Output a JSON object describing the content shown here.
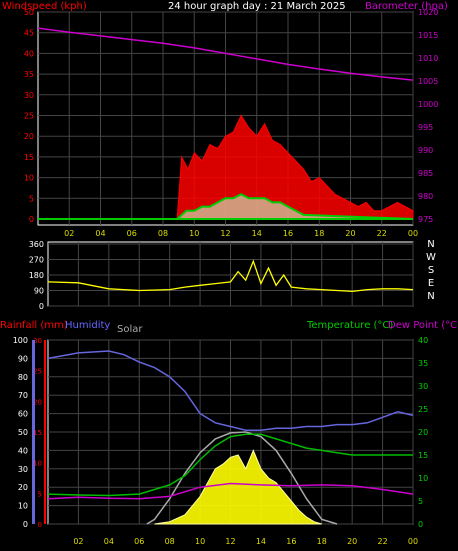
{
  "header": {
    "windspeed_label": "Windspeed (kph)",
    "title": "24 hour graph day : 21 March 2025",
    "barometer_label": "Barometer (hpa)"
  },
  "bottom_header": {
    "rainfall_label": "Rainfall (mm)",
    "humidity_label": "Humidity",
    "solar_label": "Solar",
    "temperature_label": "Temperature (°C)",
    "dewpoint_label": "Dew Point (°C)"
  },
  "colors": {
    "windspeed": "#ff0000",
    "gust_avg": "#00cc00",
    "barometer": "#cc00cc",
    "direction": "#ffff00",
    "humidity": "#6666dd",
    "temperature": "#00bb00",
    "dewpoint": "#cc00cc",
    "solar": "#ffff00",
    "solar_max": "#aaaaaa",
    "rainfall": "#ff0000",
    "grid": "#444444",
    "axis_text_x": "#dddd00"
  },
  "chart_data": [
    {
      "type": "area",
      "chart": "wind-barometer",
      "x_ticks": [
        "02",
        "04",
        "06",
        "08",
        "10",
        "12",
        "14",
        "16",
        "18",
        "20",
        "22",
        "00"
      ],
      "x_hours": [
        2,
        4,
        6,
        8,
        10,
        12,
        14,
        16,
        18,
        20,
        22,
        24
      ],
      "ylabel_left": "Windspeed (kph)",
      "ylim_left": [
        0,
        50
      ],
      "yticks_left": [
        0,
        5,
        10,
        15,
        20,
        25,
        30,
        35,
        40,
        45,
        50
      ],
      "ylabel_right": "Barometer (hpa)",
      "ylim_right": [
        975,
        1020
      ],
      "yticks_right": [
        975,
        980,
        985,
        990,
        995,
        1000,
        1005,
        1010,
        1015,
        1020
      ],
      "series": [
        {
          "name": "Windspeed",
          "color": "#ff0000",
          "x": [
            0,
            8.9,
            9.2,
            9.6,
            10,
            10.5,
            11,
            11.5,
            12,
            12.5,
            13,
            13.5,
            14,
            14.5,
            15,
            15.5,
            16,
            16.5,
            17,
            17.5,
            18,
            18.5,
            19,
            19.5,
            20,
            20.5,
            21,
            21.5,
            22,
            22.5,
            23,
            23.5,
            24
          ],
          "y": [
            0,
            0,
            15,
            12,
            16,
            14,
            18,
            17,
            20,
            21,
            25,
            22,
            20,
            23,
            19,
            18,
            16,
            14,
            12,
            9,
            10,
            8,
            6,
            5,
            4,
            3,
            4,
            2,
            2,
            3,
            4,
            3,
            2
          ]
        },
        {
          "name": "Average",
          "color": "#00cc00",
          "x": [
            0,
            8.9,
            9.5,
            10,
            10.5,
            11,
            11.5,
            12,
            12.5,
            13,
            13.5,
            14,
            14.5,
            15,
            15.5,
            16,
            16.5,
            17,
            24
          ],
          "y": [
            0,
            0,
            2,
            2,
            3,
            3,
            4,
            5,
            5,
            6,
            5,
            5,
            5,
            4,
            4,
            3,
            2,
            1,
            0
          ]
        },
        {
          "name": "Barometer",
          "color": "#cc00cc",
          "x": [
            0,
            2,
            4,
            6,
            8,
            10,
            12,
            14,
            16,
            18,
            20,
            22,
            24
          ],
          "y": [
            1016.5,
            1015.6,
            1014.8,
            1014,
            1013.2,
            1012.2,
            1011,
            1009.8,
            1008.6,
            1007.6,
            1006.7,
            1005.9,
            1005.2
          ]
        }
      ]
    },
    {
      "type": "scatter",
      "chart": "wind-direction",
      "x_ticks": [
        "02",
        "04",
        "06",
        "08",
        "10",
        "12",
        "14",
        "16",
        "18",
        "20",
        "22",
        "00"
      ],
      "ylim": [
        0,
        360
      ],
      "yticks": [
        0,
        90,
        180,
        270,
        360
      ],
      "compass": [
        "N",
        "W",
        "S",
        "E",
        "N"
      ],
      "series": [
        {
          "name": "Direction",
          "color": "#ffff00",
          "x": [
            0,
            2,
            4,
            6,
            8,
            9,
            10,
            11,
            12,
            12.5,
            13,
            13.5,
            14,
            14.5,
            15,
            15.5,
            16,
            17,
            18,
            19,
            20,
            21,
            22,
            23,
            24
          ],
          "y": [
            140,
            135,
            100,
            90,
            95,
            110,
            120,
            130,
            140,
            200,
            150,
            260,
            130,
            220,
            120,
            180,
            110,
            100,
            95,
            90,
            85,
            95,
            100,
            100,
            95
          ]
        }
      ]
    },
    {
      "type": "line",
      "chart": "temperature-humidity-solar",
      "x_ticks": [
        "02",
        "04",
        "06",
        "08",
        "10",
        "12",
        "14",
        "16",
        "18",
        "20",
        "22",
        "00"
      ],
      "y_left_humidity": [
        0,
        10,
        20,
        30,
        40,
        50,
        60,
        70,
        80,
        90,
        100
      ],
      "y_left_rain": [
        0,
        5,
        10,
        15,
        20,
        25,
        30
      ],
      "ylim_right": [
        0,
        40
      ],
      "yticks_right": [
        0,
        5,
        10,
        15,
        20,
        25,
        30,
        35,
        40
      ],
      "series": [
        {
          "name": "Humidity",
          "color": "#6666dd",
          "x": [
            0,
            2,
            4,
            5,
            6,
            7,
            8,
            9,
            10,
            11,
            12,
            13,
            14,
            15,
            16,
            17,
            18,
            19,
            20,
            21,
            22,
            23,
            24
          ],
          "y": [
            90,
            93,
            94,
            92,
            88,
            85,
            80,
            72,
            60,
            55,
            53,
            51,
            51,
            52,
            52,
            53,
            53,
            54,
            54,
            55,
            58,
            61,
            59
          ]
        },
        {
          "name": "Temperature",
          "color": "#00bb00",
          "x": [
            0,
            2,
            4,
            6,
            7,
            8,
            9,
            10,
            11,
            12,
            13,
            14,
            15,
            16,
            17,
            18,
            19,
            20,
            21,
            22,
            23,
            24
          ],
          "y": [
            6.5,
            6.3,
            6.2,
            6.5,
            7.5,
            8.5,
            10.5,
            14,
            17,
            19,
            19.5,
            19.5,
            18.5,
            17.5,
            16.5,
            16,
            15.5,
            15,
            15,
            15,
            15,
            15
          ]
        },
        {
          "name": "Dew Point",
          "color": "#cc00cc",
          "x": [
            0,
            2,
            4,
            6,
            8,
            10,
            12,
            14,
            16,
            18,
            20,
            22,
            23,
            24
          ],
          "y": [
            5.5,
            5.8,
            5.6,
            5.5,
            6,
            8,
            8.8,
            8.5,
            8.3,
            8.5,
            8.3,
            7.5,
            7,
            6.5
          ]
        },
        {
          "name": "Solar",
          "color": "#ffff00",
          "x": [
            7,
            8,
            9,
            10,
            10.5,
            11,
            11.5,
            12,
            12.5,
            13,
            13.5,
            14,
            14.5,
            15,
            15.5,
            16,
            16.5,
            17,
            17.5,
            18
          ],
          "y": [
            0,
            0.5,
            2,
            6,
            9,
            12,
            13,
            14.5,
            15,
            12,
            16,
            12,
            10,
            9,
            7,
            5,
            3,
            1.5,
            0.5,
            0
          ]
        },
        {
          "name": "Solar Max",
          "color": "#aaaaaa",
          "x": [
            6.5,
            7,
            8,
            9,
            10,
            11,
            12,
            13,
            14,
            15,
            16,
            17,
            18,
            19
          ],
          "y": [
            0,
            1,
            5.5,
            11,
            15.5,
            18.5,
            19.8,
            20,
            19,
            16,
            11,
            5.5,
            1,
            0
          ]
        }
      ]
    }
  ]
}
